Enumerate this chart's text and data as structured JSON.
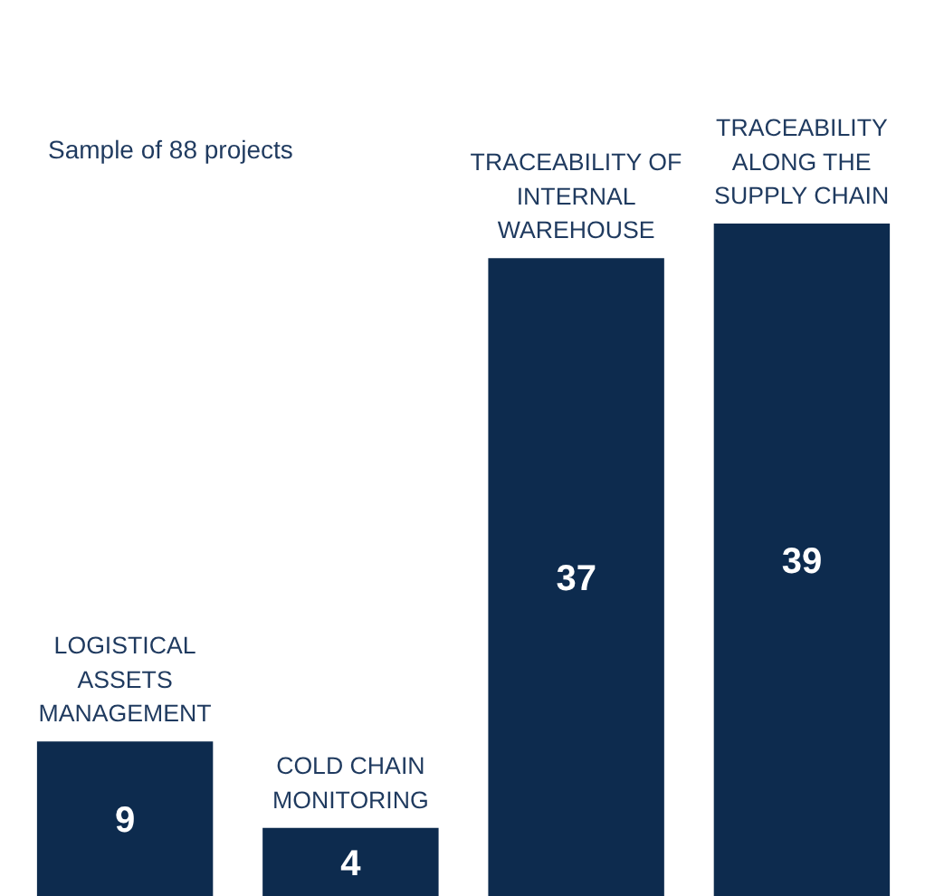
{
  "chart_data": {
    "type": "bar",
    "categories": [
      "LOGISTICAL ASSETS MANAGEMENT",
      "COLD CHAIN MONITORING",
      "TRACEABILITY OF INTERNAL WAREHOUSE",
      "TRACEABILITY ALONG THE SUPPLY CHAIN"
    ],
    "values": [
      9,
      4,
      37,
      39
    ],
    "color": "#0d2b4e",
    "data_labels": true,
    "grid": false,
    "annotations": [
      "Sample of 88 projects"
    ]
  }
}
